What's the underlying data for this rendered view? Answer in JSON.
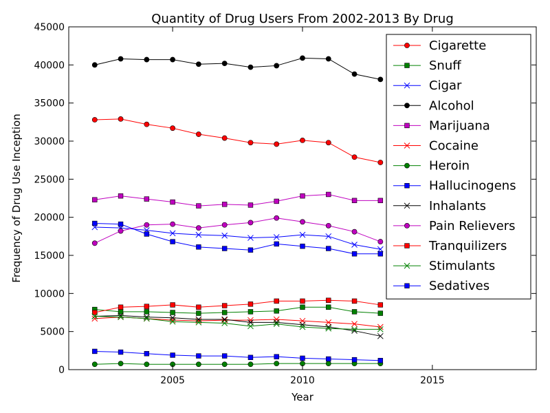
{
  "chart_data": {
    "type": "line",
    "title": "Quantity of Drug Users From 2002-2013 By Drug",
    "xlabel": "Year",
    "ylabel": "Frequency of Drug Use Inception",
    "xlim": [
      2001,
      2019
    ],
    "ylim": [
      0,
      45000
    ],
    "xticks": [
      2005,
      2010,
      2015
    ],
    "yticks": [
      0,
      5000,
      10000,
      15000,
      20000,
      25000,
      30000,
      35000,
      40000,
      45000
    ],
    "grid": false,
    "legend_position": "top-right",
    "x": [
      2002,
      2003,
      2004,
      2005,
      2006,
      2007,
      2008,
      2009,
      2010,
      2011,
      2012,
      2013
    ],
    "series": [
      {
        "name": "Cigarette",
        "color": "#ff0000",
        "marker": "circle",
        "values": [
          32800,
          32900,
          32200,
          31700,
          30900,
          30400,
          29800,
          29600,
          30100,
          29800,
          27900,
          27200
        ]
      },
      {
        "name": "Snuff",
        "color": "#008000",
        "marker": "square",
        "values": [
          7900,
          7600,
          7600,
          7500,
          7400,
          7500,
          7600,
          7700,
          8200,
          8200,
          7600,
          7400
        ]
      },
      {
        "name": "Cigar",
        "color": "#0000ff",
        "marker": "x",
        "values": [
          18700,
          18600,
          18300,
          17900,
          17700,
          17600,
          17300,
          17400,
          17700,
          17500,
          16400,
          15800
        ]
      },
      {
        "name": "Alcohol",
        "color": "#000000",
        "marker": "circle",
        "values": [
          40000,
          40800,
          40700,
          40700,
          40100,
          40200,
          39700,
          39900,
          40900,
          40800,
          38800,
          38100
        ]
      },
      {
        "name": "Marijuana",
        "color": "#bf00bf",
        "marker": "square",
        "values": [
          22300,
          22800,
          22400,
          22000,
          21500,
          21700,
          21600,
          22100,
          22800,
          23000,
          22200,
          22200
        ]
      },
      {
        "name": "Cocaine",
        "color": "#ff0000",
        "marker": "x",
        "values": [
          6700,
          6900,
          6700,
          6500,
          6400,
          6500,
          6500,
          6600,
          6400,
          6200,
          6000,
          5600
        ]
      },
      {
        "name": "Heroin",
        "color": "#008000",
        "marker": "circle",
        "values": [
          700,
          800,
          700,
          700,
          700,
          700,
          700,
          800,
          800,
          800,
          800,
          800
        ]
      },
      {
        "name": "Hallucinogens",
        "color": "#0000ff",
        "marker": "square",
        "values": [
          2400,
          2300,
          2100,
          1900,
          1800,
          1800,
          1600,
          1700,
          1500,
          1400,
          1300,
          1200
        ]
      },
      {
        "name": "Inhalants",
        "color": "#000000",
        "marker": "x",
        "values": [
          7000,
          7100,
          6900,
          6800,
          6600,
          6600,
          6200,
          6200,
          5900,
          5600,
          5100,
          4400
        ]
      },
      {
        "name": "Pain Relievers",
        "color": "#bf00bf",
        "marker": "circle",
        "values": [
          16600,
          18200,
          19000,
          19100,
          18600,
          19000,
          19300,
          19900,
          19400,
          18900,
          18100,
          16800
        ]
      },
      {
        "name": "Tranquilizers",
        "color": "#ff0000",
        "marker": "square",
        "values": [
          7500,
          8200,
          8300,
          8500,
          8200,
          8400,
          8600,
          9000,
          9000,
          9100,
          9000,
          8500
        ]
      },
      {
        "name": "Stimulants",
        "color": "#008000",
        "marker": "x",
        "values": [
          7000,
          6900,
          6700,
          6300,
          6200,
          6100,
          5700,
          6000,
          5600,
          5400,
          5300,
          5300
        ]
      },
      {
        "name": "Sedatives",
        "color": "#0000ff",
        "marker": "square",
        "values": [
          19200,
          19100,
          17800,
          16800,
          16100,
          15900,
          15700,
          16500,
          16200,
          15900,
          15200,
          15200
        ]
      }
    ]
  }
}
